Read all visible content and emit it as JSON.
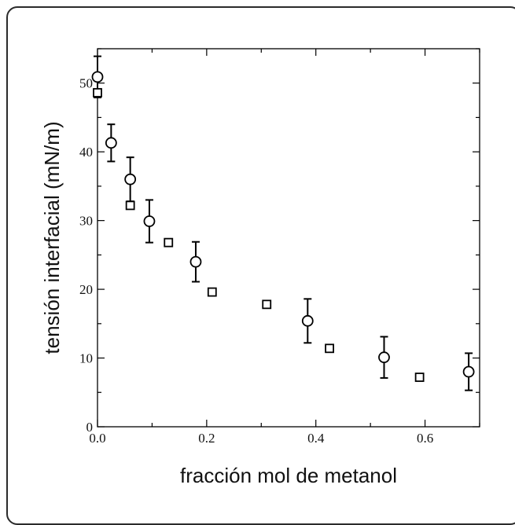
{
  "chart_data": {
    "type": "scatter",
    "xlabel": "fracción mol de metanol",
    "ylabel": "tensión interfacial (mN/m)",
    "xlim": [
      0,
      0.7
    ],
    "ylim": [
      0,
      55
    ],
    "x_ticks": [
      "0.0",
      "0.2",
      "0.4",
      "0.6"
    ],
    "x_tick_values": [
      0,
      0.2,
      0.4,
      0.6
    ],
    "y_ticks": [
      "0",
      "10",
      "20",
      "30",
      "40",
      "50"
    ],
    "y_tick_values": [
      0,
      10,
      20,
      30,
      40,
      50
    ],
    "grid": false,
    "series": [
      {
        "marker": "circle",
        "x": [
          0.0,
          0.025,
          0.06,
          0.095,
          0.18,
          0.385,
          0.525,
          0.68
        ],
        "y": [
          50.9,
          41.3,
          36.0,
          29.9,
          24.0,
          15.4,
          10.1,
          8.0
        ],
        "yerr": [
          3.0,
          2.7,
          3.2,
          3.1,
          2.9,
          3.2,
          3.0,
          2.7
        ]
      },
      {
        "marker": "square",
        "x": [
          0.0,
          0.06,
          0.13,
          0.21,
          0.31,
          0.425,
          0.59
        ],
        "y": [
          48.6,
          32.2,
          26.8,
          19.6,
          17.8,
          11.4,
          7.2
        ]
      }
    ]
  }
}
